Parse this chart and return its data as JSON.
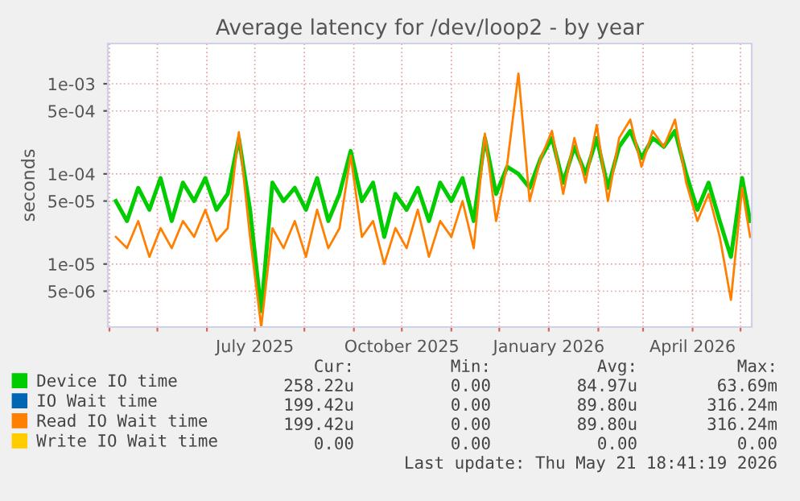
{
  "chart_data": {
    "type": "line",
    "title": "Average latency for /dev/loop2 - by year",
    "ylabel": "seconds",
    "x": [
      "2025-04-05",
      "2025-04-12",
      "2025-04-19",
      "2025-04-26",
      "2025-05-03",
      "2025-05-10",
      "2025-05-17",
      "2025-05-24",
      "2025-05-31",
      "2025-06-07",
      "2025-06-14",
      "2025-06-21",
      "2025-06-28",
      "2025-07-05",
      "2025-07-12",
      "2025-07-19",
      "2025-07-26",
      "2025-08-02",
      "2025-08-09",
      "2025-08-16",
      "2025-08-23",
      "2025-08-30",
      "2025-09-06",
      "2025-09-13",
      "2025-09-20",
      "2025-09-27",
      "2025-10-04",
      "2025-10-11",
      "2025-10-18",
      "2025-10-25",
      "2025-11-01",
      "2025-11-08",
      "2025-11-15",
      "2025-11-22",
      "2025-11-29",
      "2025-12-06",
      "2025-12-13",
      "2025-12-20",
      "2025-12-27",
      "2026-01-03",
      "2026-01-10",
      "2026-01-17",
      "2026-01-24",
      "2026-01-31",
      "2026-02-07",
      "2026-02-14",
      "2026-02-21",
      "2026-02-28",
      "2026-03-07",
      "2026-03-14",
      "2026-03-21",
      "2026-03-28",
      "2026-04-04",
      "2026-04-11",
      "2026-04-18",
      "2026-04-25",
      "2026-05-02",
      "2026-05-07"
    ],
    "series": [
      {
        "name": "Device IO time",
        "color": "#00cc00",
        "values": [
          5e-05,
          3e-05,
          7e-05,
          4e-05,
          9e-05,
          3e-05,
          8e-05,
          5e-05,
          9e-05,
          4e-05,
          6e-05,
          0.00025,
          4e-05,
          3e-06,
          8e-05,
          5e-05,
          7e-05,
          4e-05,
          9e-05,
          3e-05,
          6e-05,
          0.00018,
          5e-05,
          8e-05,
          2e-05,
          6e-05,
          4e-05,
          7e-05,
          3e-05,
          8e-05,
          5e-05,
          9e-05,
          3e-05,
          0.00025,
          6e-05,
          0.00012,
          0.0001,
          7e-05,
          0.00015,
          0.00025,
          8e-05,
          0.0002,
          0.0001,
          0.00025,
          7e-05,
          0.0002,
          0.0003,
          0.00015,
          0.00025,
          0.0002,
          0.0003,
          0.0001,
          4e-05,
          8e-05,
          3e-05,
          1.2e-05,
          9e-05,
          3e-05
        ]
      },
      {
        "name": "IO Wait time",
        "color": "#0066b3",
        "values": [
          null,
          null,
          null,
          null,
          null,
          null,
          null,
          null,
          null,
          null,
          null,
          null,
          null,
          null,
          null,
          null,
          null,
          null,
          null,
          null,
          null,
          null,
          null,
          null,
          null,
          null,
          null,
          null,
          null,
          null,
          null,
          null,
          null,
          null,
          null,
          null,
          null,
          null,
          null,
          null,
          null,
          null,
          null,
          null,
          null,
          null,
          null,
          null,
          null,
          null,
          null,
          null,
          null,
          null,
          null,
          null,
          null,
          null
        ]
      },
      {
        "name": "Read IO Wait time",
        "color": "#ff8000",
        "values": [
          2e-05,
          1.5e-05,
          3e-05,
          1.2e-05,
          2.5e-05,
          1.5e-05,
          3e-05,
          2e-05,
          4e-05,
          1.8e-05,
          2.5e-05,
          0.00029,
          2e-05,
          2e-06,
          2.5e-05,
          1.5e-05,
          3e-05,
          1.2e-05,
          4e-05,
          1.5e-05,
          2.5e-05,
          0.00016,
          2e-05,
          3e-05,
          1e-05,
          2.5e-05,
          1.5e-05,
          4e-05,
          1.2e-05,
          3e-05,
          2e-05,
          5e-05,
          1.5e-05,
          0.00028,
          3e-05,
          0.00013,
          0.0013,
          5e-05,
          0.00015,
          0.0003,
          6e-05,
          0.00025,
          8e-05,
          0.00035,
          5e-05,
          0.00025,
          0.0004,
          0.00012,
          0.0003,
          0.0002,
          0.0004,
          8e-05,
          3e-05,
          6e-05,
          2e-05,
          4e-06,
          7e-05,
          2e-05
        ]
      },
      {
        "name": "Write IO Wait time",
        "color": "#ffcc00",
        "values": [
          null,
          null,
          null,
          null,
          null,
          null,
          null,
          null,
          null,
          null,
          null,
          null,
          null,
          null,
          null,
          null,
          null,
          null,
          null,
          null,
          null,
          null,
          null,
          null,
          null,
          null,
          null,
          null,
          null,
          null,
          null,
          null,
          null,
          null,
          null,
          null,
          null,
          null,
          null,
          null,
          null,
          null,
          null,
          null,
          null,
          null,
          null,
          null,
          null,
          null,
          null,
          null,
          null,
          null,
          null,
          null,
          null,
          null
        ]
      }
    ],
    "log": "y",
    "ylim": [
      2e-06,
      0.0028
    ],
    "yticks": [
      {
        "value": 5e-06,
        "label": "5e-06"
      },
      {
        "value": 1e-05,
        "label": "1e-05"
      },
      {
        "value": 5e-05,
        "label": "5e-05"
      },
      {
        "value": 0.0001,
        "label": "1e-04"
      },
      {
        "value": 0.0005,
        "label": "5e-04"
      },
      {
        "value": 0.001,
        "label": "1e-03"
      }
    ],
    "xlim": [
      "2025-03-31",
      "2026-05-08"
    ],
    "xticks": [
      {
        "value": "2025-04-01",
        "label": null
      },
      {
        "value": "2025-05-01",
        "label": null
      },
      {
        "value": "2025-06-01",
        "label": null
      },
      {
        "value": "2025-07-01",
        "label": "July 2025"
      },
      {
        "value": "2025-08-01",
        "label": null
      },
      {
        "value": "2025-09-01",
        "label": null
      },
      {
        "value": "2025-10-01",
        "label": "October 2025"
      },
      {
        "value": "2025-11-01",
        "label": null
      },
      {
        "value": "2025-12-01",
        "label": null
      },
      {
        "value": "2026-01-01",
        "label": "January 2026"
      },
      {
        "value": "2026-02-01",
        "label": null
      },
      {
        "value": "2026-03-01",
        "label": null
      },
      {
        "value": "2026-04-01",
        "label": "April 2026"
      },
      {
        "value": "2026-05-01",
        "label": null
      }
    ],
    "grid": true,
    "legend": "bottom",
    "marker": "none",
    "line_style": "solid",
    "annotations": [
      "Cur:",
      "Min:",
      "Avg:",
      "Max:",
      "258.22u",
      "0.00",
      "84.97u",
      "63.69m",
      "199.42u",
      "0.00",
      "89.80u",
      "316.24m",
      "199.42u",
      "0.00",
      "89.80u",
      "316.24m",
      "0.00",
      "0.00",
      "0.00",
      "0.00",
      "Last update: Thu May 21 18:41:19 2026"
    ]
  }
}
